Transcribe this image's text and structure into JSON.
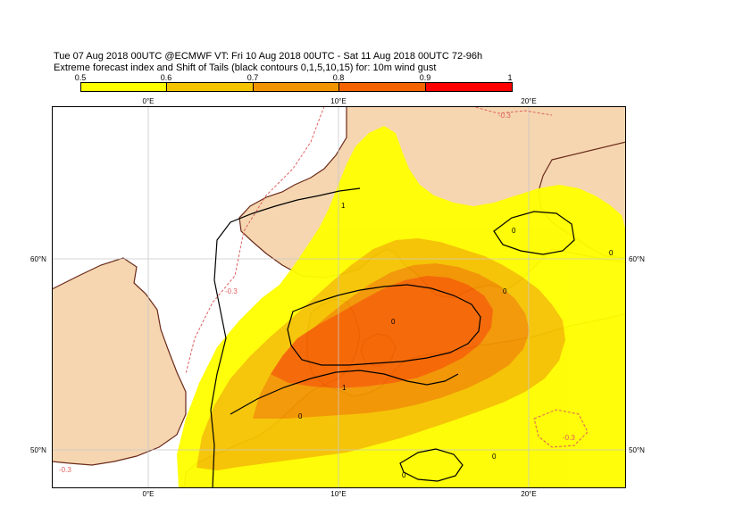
{
  "title": {
    "line1": "Tue 07 Aug 2018 00UTC @ECMWF VT: Fri 10 Aug 2018 00UTC - Sat 11 Aug 2018 00UTC  72-96h",
    "line2": "Extreme forecast index and Shift of Tails (black contours 0,1,5,10,15) for: 10m wind gust"
  },
  "colorbar": {
    "ticks": [
      "0.5",
      "0.6",
      "0.7",
      "0.8",
      "0.9",
      "1"
    ],
    "colors": [
      "#ffff00",
      "#f5c400",
      "#f29400",
      "#f56400",
      "#ff0000"
    ]
  },
  "axes": {
    "lon_labels": [
      "0°E",
      "10°E",
      "20°E"
    ],
    "lat_labels": [
      "60°N",
      "50°N"
    ]
  },
  "colors": {
    "sea": "#ffffff",
    "land": "#f5d6b0",
    "grid": "#c8c8c8",
    "coast": "#6b2a1a",
    "efi_05": "#ffff00",
    "efi_06": "#f5c400",
    "efi_07": "#f29400",
    "efi_08": "#f56400",
    "efi_09": "#ff0000",
    "sot_contour": "#000000",
    "negative_contour": "#e06060"
  },
  "contour_labels": {
    "sot": [
      "1",
      "0",
      "0",
      "0",
      "1",
      "0",
      "0",
      "0",
      "0"
    ],
    "efi_negative": [
      "-0.3",
      "-0.3",
      "-0.3",
      "-0.3"
    ]
  }
}
